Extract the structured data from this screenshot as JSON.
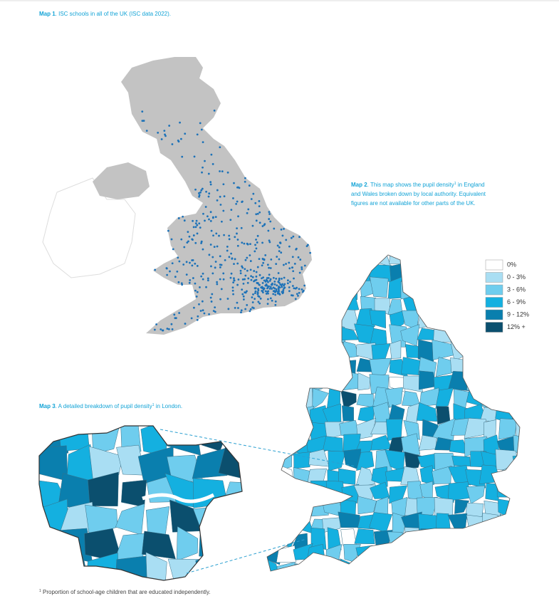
{
  "map1": {
    "label": "Map 1",
    "caption": ". ISC schools in all of the UK (ISC data 2022)."
  },
  "map2": {
    "label": "Map 2",
    "caption_start": ". This map shows the pupil density",
    "note_mark": "1",
    "caption_line1_end": " in England",
    "caption_line2": "and Wales broken down by local authority. Equivalent",
    "caption_line3": "figures are not available for other parts of the UK."
  },
  "legend": {
    "items": [
      {
        "label": "0%",
        "color": "#ffffff"
      },
      {
        "label": "0 - 3%",
        "color": "#a9def3"
      },
      {
        "label": "3 - 6%",
        "color": "#6fcdee"
      },
      {
        "label": "6 - 9%",
        "color": "#14b0e0"
      },
      {
        "label": "9 - 12%",
        "color": "#0a7fae"
      },
      {
        "label": "12% +",
        "color": "#0b4f6e"
      }
    ]
  },
  "map3": {
    "label": "Map 3",
    "caption_start": ". A detailed breakdown of pupil density",
    "note_mark": "1",
    "caption_end": " in London."
  },
  "footnote": {
    "note_mark": "1",
    "text": " Proportion of school-age children that are educated independently."
  }
}
